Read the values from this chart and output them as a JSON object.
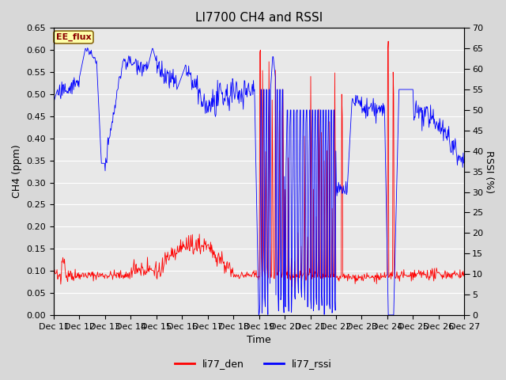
{
  "title": "LI7700 CH4 and RSSI",
  "xlabel": "Time",
  "ylabel_left": "CH4 (ppm)",
  "ylabel_right": "RSSI (%)",
  "ylim_left": [
    0.0,
    0.65
  ],
  "ylim_right": [
    0,
    70
  ],
  "xtick_labels": [
    "Dec 11",
    "Dec 12",
    "Dec 13",
    "Dec 14",
    "Dec 15",
    "Dec 16",
    "Dec 17",
    "Dec 18",
    "Dec 19",
    "Dec 20",
    "Dec 21",
    "Dec 22",
    "Dec 23",
    "Dec 24",
    "Dec 25",
    "Dec 26",
    "Dec 27"
  ],
  "legend_labels": [
    "li77_den",
    "li77_rssi"
  ],
  "legend_colors": [
    "red",
    "blue"
  ],
  "annotation_text": "EE_flux",
  "fig_bg_color": "#d8d8d8",
  "plot_bg_color": "#e8e8e8",
  "line_color_den": "red",
  "line_color_rssi": "blue",
  "grid_color": "white",
  "title_fontsize": 11,
  "label_fontsize": 9,
  "tick_fontsize": 8
}
